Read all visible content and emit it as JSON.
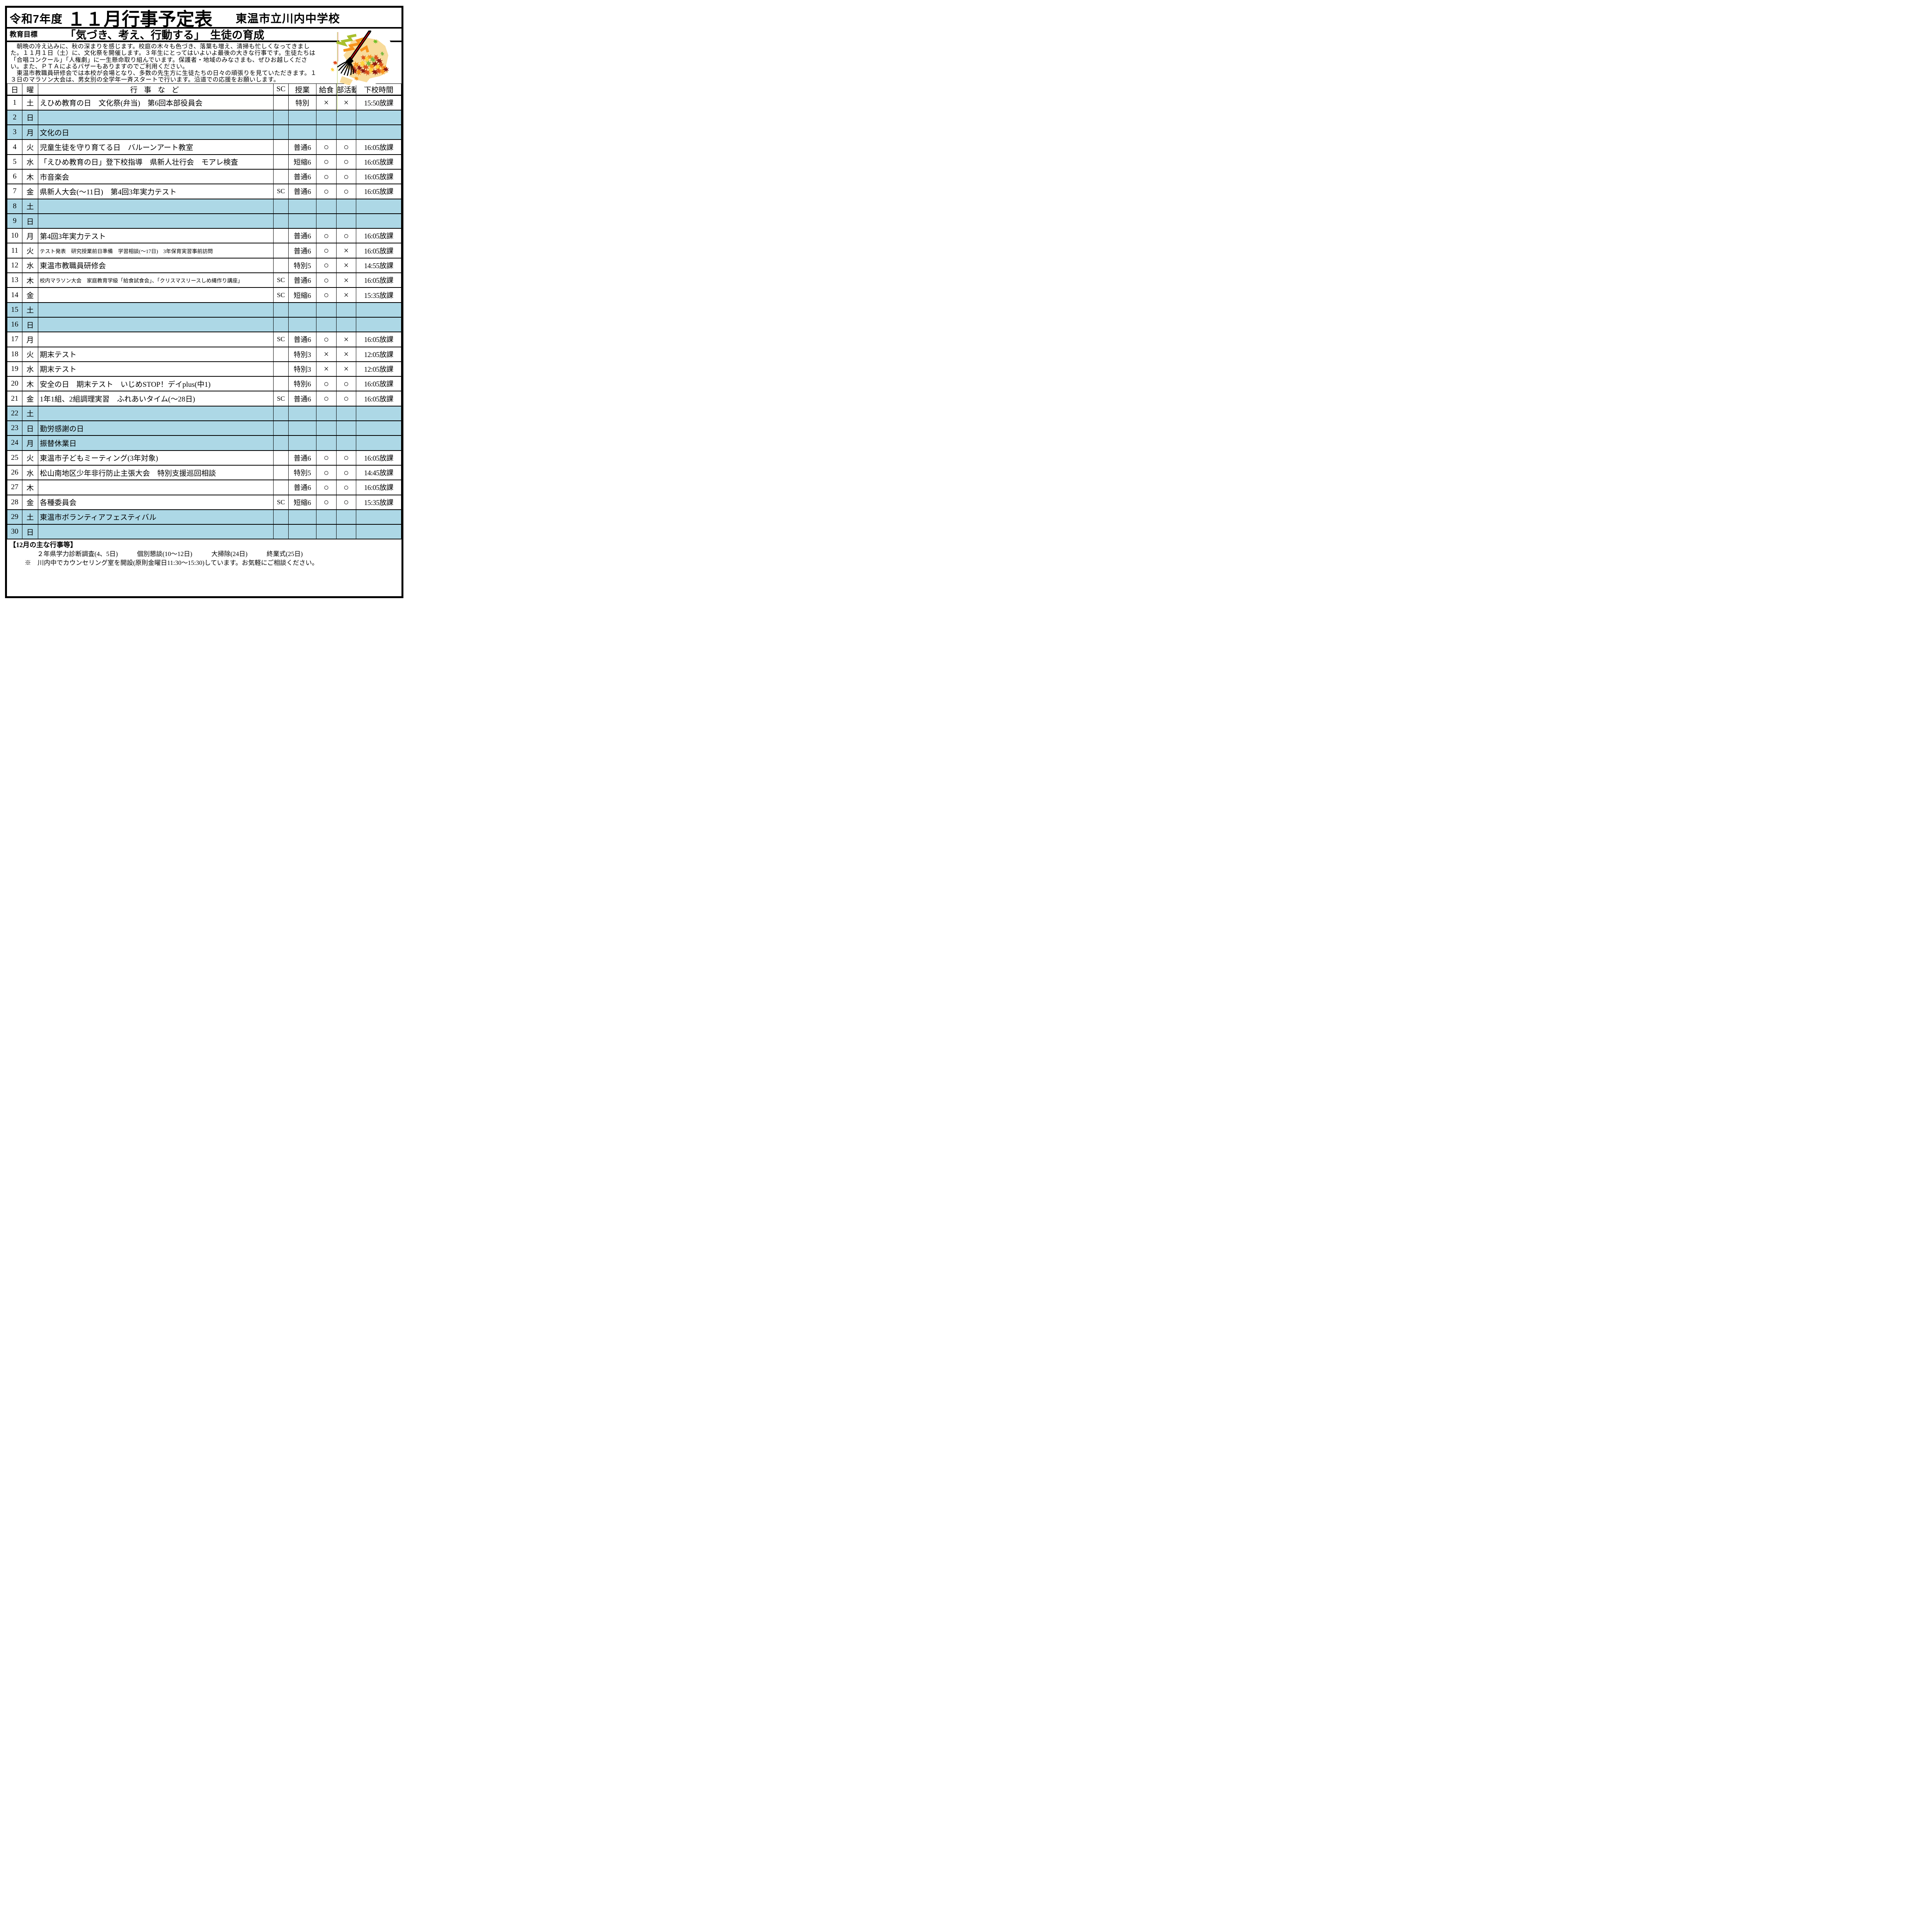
{
  "colors": {
    "highlight_row": "#ADD8E6",
    "border": "#000000",
    "rake_handle_red": "#E8000B",
    "blob_tan": "#F8DB9B",
    "zigzag_green": "#A9BF2D",
    "zigzag_orange": "#F7941D",
    "leaf_orange": "#F7941D",
    "leaf_yellow": "#FFD23A",
    "leaf_green": "#7CB942",
    "leaf_dark_red": "#8E1A12",
    "leaf_red_orange": "#D9531C"
  },
  "header": {
    "year": "令和7年度",
    "title": "１１月行事予定表",
    "school": "東温市立川内中学校"
  },
  "goal": {
    "label": "教育目標",
    "text": "「気づき、考え、行動する」　生徒の育成"
  },
  "intro": {
    "lines": [
      "　朝晩の冷え込みに、秋の深まりを感じます。校庭の木々も色づき、落葉も増え、清掃も忙しくなってきまし",
      "た。１１月１日（土）に、文化祭を開催します。３年生にとってはいよいよ最後の大きな行事です。生徒たちは",
      "「合唱コンクール」「人権劇」に一生懸命取り組んでいます。保護者・地域のみなさまも、ぜひお越しくださ",
      "い。また、ＰＴＡによるバザーもありますのでご利用ください。",
      "　東温市教職員研修会では本校が会場となり、多数の先生方に生徒たちの日々の頑張りを見ていただきます。１",
      "３日のマラソン大会は、男女別の全学年一斉スタートで行います。沿道での応援をお願いします。"
    ]
  },
  "schedule": {
    "columns": {
      "day": "日",
      "weekday": "曜",
      "events": "行 事 な ど",
      "sc": "SC",
      "classes": "授業",
      "lunch": "給食",
      "club": "部活動",
      "dismissal": "下校時間"
    },
    "marks": {
      "yes": "○",
      "no": "×"
    },
    "rows": [
      {
        "day": 1,
        "weekday": "土",
        "event": "えひめ教育の日　文化祭(弁当)　第6回本部役員会",
        "sc": "",
        "classes": "特別",
        "lunch": "×",
        "club": "×",
        "dismissal": "15:50放課",
        "highlight": false
      },
      {
        "day": 2,
        "weekday": "日",
        "event": "",
        "sc": "",
        "classes": "",
        "lunch": "",
        "club": "",
        "dismissal": "",
        "highlight": true
      },
      {
        "day": 3,
        "weekday": "月",
        "event": "文化の日",
        "sc": "",
        "classes": "",
        "lunch": "",
        "club": "",
        "dismissal": "",
        "highlight": true
      },
      {
        "day": 4,
        "weekday": "火",
        "event": "児童生徒を守り育てる日　バルーンアート教室",
        "sc": "",
        "classes": "普通6",
        "lunch": "○",
        "club": "○",
        "dismissal": "16:05放課",
        "highlight": false
      },
      {
        "day": 5,
        "weekday": "水",
        "event": "「えひめ教育の日」登下校指導　県新人壮行会　モアレ検査",
        "sc": "",
        "classes": "短縮6",
        "lunch": "○",
        "club": "○",
        "dismissal": "16:05放課",
        "highlight": false
      },
      {
        "day": 6,
        "weekday": "木",
        "event": "市音楽会",
        "sc": "",
        "classes": "普通6",
        "lunch": "○",
        "club": "○",
        "dismissal": "16:05放課",
        "highlight": false
      },
      {
        "day": 7,
        "weekday": "金",
        "event": "県新人大会(～11日)　第4回3年実力テスト",
        "sc": "SC",
        "classes": "普通6",
        "lunch": "○",
        "club": "○",
        "dismissal": "16:05放課",
        "highlight": false
      },
      {
        "day": 8,
        "weekday": "土",
        "event": "",
        "sc": "",
        "classes": "",
        "lunch": "",
        "club": "",
        "dismissal": "",
        "highlight": true
      },
      {
        "day": 9,
        "weekday": "日",
        "event": "",
        "sc": "",
        "classes": "",
        "lunch": "",
        "club": "",
        "dismissal": "",
        "highlight": true
      },
      {
        "day": 10,
        "weekday": "月",
        "event": "第4回3年実力テスト",
        "sc": "",
        "classes": "普通6",
        "lunch": "○",
        "club": "○",
        "dismissal": "16:05放課",
        "highlight": false
      },
      {
        "day": 11,
        "weekday": "火",
        "event": "テスト発表　研究授業前日準備　学習相談(～17日)　3年保育実習事前訪問",
        "sc": "",
        "classes": "普通6",
        "lunch": "○",
        "club": "×",
        "dismissal": "16:05放課",
        "highlight": false,
        "event_size": "small"
      },
      {
        "day": 12,
        "weekday": "水",
        "event": "東温市教職員研修会",
        "sc": "",
        "classes": "特別5",
        "lunch": "○",
        "club": "×",
        "dismissal": "14:55放課",
        "highlight": false
      },
      {
        "day": 13,
        "weekday": "木",
        "event": "校内マラソン大会　家庭教育学級「給食試食会」、「クリスマスリースしめ縄作り講座」",
        "sc": "SC",
        "classes": "普通6",
        "lunch": "○",
        "club": "×",
        "dismissal": "16:05放課",
        "highlight": false,
        "event_size": "small"
      },
      {
        "day": 14,
        "weekday": "金",
        "event": "",
        "sc": "SC",
        "classes": "短縮6",
        "lunch": "○",
        "club": "×",
        "dismissal": "15:35放課",
        "highlight": false
      },
      {
        "day": 15,
        "weekday": "土",
        "event": "",
        "sc": "",
        "classes": "",
        "lunch": "",
        "club": "",
        "dismissal": "",
        "highlight": true
      },
      {
        "day": 16,
        "weekday": "日",
        "event": "",
        "sc": "",
        "classes": "",
        "lunch": "",
        "club": "",
        "dismissal": "",
        "highlight": true
      },
      {
        "day": 17,
        "weekday": "月",
        "event": "",
        "sc": "SC",
        "classes": "普通6",
        "lunch": "○",
        "club": "×",
        "dismissal": "16:05放課",
        "highlight": false
      },
      {
        "day": 18,
        "weekday": "火",
        "event": "期末テスト",
        "sc": "",
        "classes": "特別3",
        "lunch": "×",
        "club": "×",
        "dismissal": "12:05放課",
        "highlight": false
      },
      {
        "day": 19,
        "weekday": "水",
        "event": "期末テスト",
        "sc": "",
        "classes": "特別3",
        "lunch": "×",
        "club": "×",
        "dismissal": "12:05放課",
        "highlight": false
      },
      {
        "day": 20,
        "weekday": "木",
        "event": "安全の日　期末テスト　いじめSTOP！デイplus(中1)",
        "sc": "",
        "classes": "特別6",
        "lunch": "○",
        "club": "○",
        "dismissal": "16:05放課",
        "highlight": false
      },
      {
        "day": 21,
        "weekday": "金",
        "event": "1年1組、2組調理実習　ふれあいタイム(～28日)",
        "sc": "SC",
        "classes": "普通6",
        "lunch": "○",
        "club": "○",
        "dismissal": "16:05放課",
        "highlight": false
      },
      {
        "day": 22,
        "weekday": "土",
        "event": "",
        "sc": "",
        "classes": "",
        "lunch": "",
        "club": "",
        "dismissal": "",
        "highlight": true
      },
      {
        "day": 23,
        "weekday": "日",
        "event": "勤労感謝の日",
        "sc": "",
        "classes": "",
        "lunch": "",
        "club": "",
        "dismissal": "",
        "highlight": true
      },
      {
        "day": 24,
        "weekday": "月",
        "event": "振替休業日",
        "sc": "",
        "classes": "",
        "lunch": "",
        "club": "",
        "dismissal": "",
        "highlight": true
      },
      {
        "day": 25,
        "weekday": "火",
        "event": "東温市子どもミーティング(3年対象)",
        "sc": "",
        "classes": "普通6",
        "lunch": "○",
        "club": "○",
        "dismissal": "16:05放課",
        "highlight": false
      },
      {
        "day": 26,
        "weekday": "水",
        "event": "松山南地区少年非行防止主張大会　特別支援巡回相談",
        "sc": "",
        "classes": "特別5",
        "lunch": "○",
        "club": "○",
        "dismissal": "14:45放課",
        "highlight": false
      },
      {
        "day": 27,
        "weekday": "木",
        "event": "",
        "sc": "",
        "classes": "普通6",
        "lunch": "○",
        "club": "○",
        "dismissal": "16:05放課",
        "highlight": false
      },
      {
        "day": 28,
        "weekday": "金",
        "event": "各種委員会",
        "sc": "SC",
        "classes": "短縮6",
        "lunch": "○",
        "club": "○",
        "dismissal": "15:35放課",
        "highlight": false
      },
      {
        "day": 29,
        "weekday": "土",
        "event": "東温市ボランティアフェスティバル",
        "sc": "",
        "classes": "",
        "lunch": "",
        "club": "",
        "dismissal": "",
        "highlight": true
      },
      {
        "day": 30,
        "weekday": "日",
        "event": "",
        "sc": "",
        "classes": "",
        "lunch": "",
        "club": "",
        "dismissal": "",
        "highlight": true
      }
    ]
  },
  "footer": {
    "heading": "【12月の主な行事等】",
    "events_line": "２年県学力診断調査(4、5日)　　　個別懇談(10～12日)　　　大掃除(24日)　　　終業式(25日)",
    "note_line": "※　川内中でカウンセリング室を開設(原則金曜日11:30～15:30)しています。お気軽にご相談ください。"
  }
}
